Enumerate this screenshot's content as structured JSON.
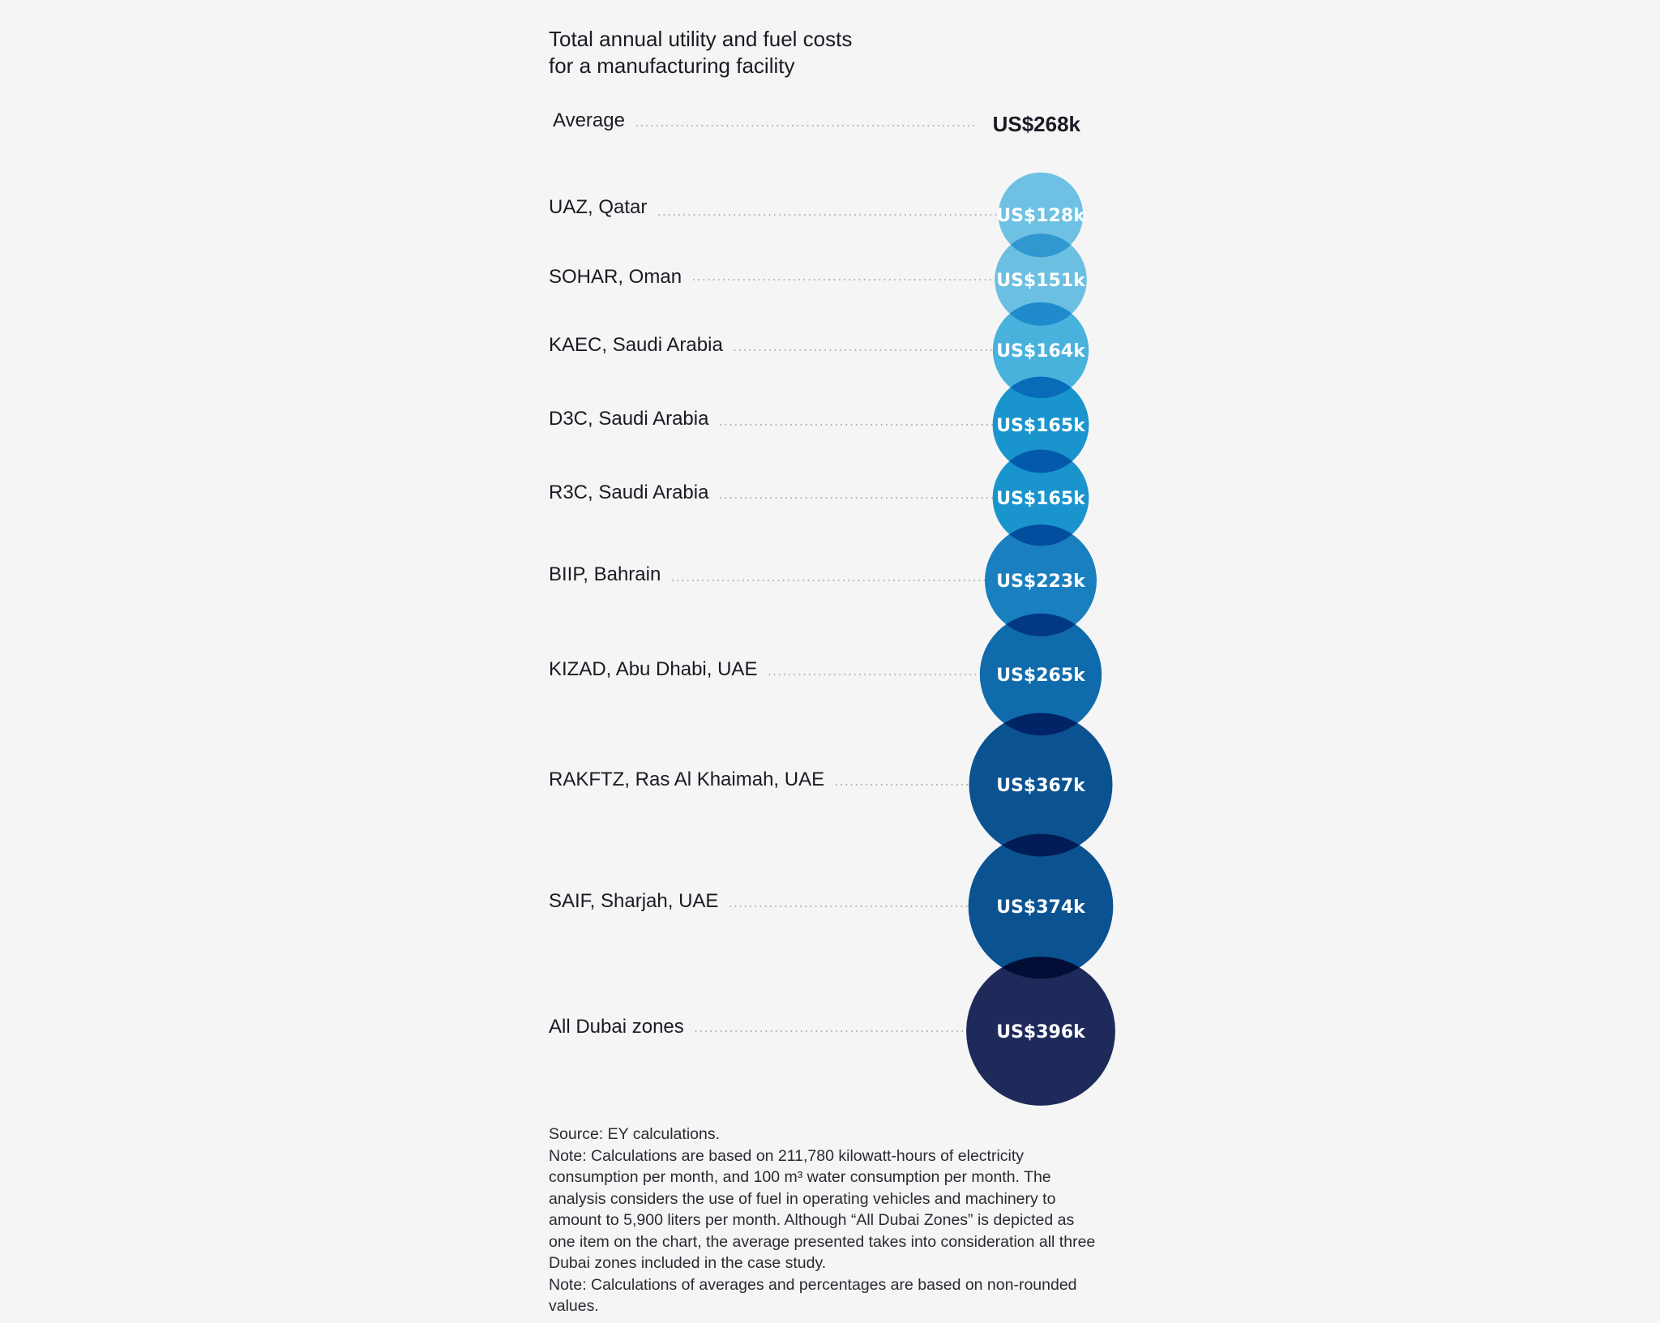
{
  "chart_data": {
    "type": "bubble",
    "title": "Total annual utility and fuel costs\nfor a manufacturing facility",
    "average": {
      "label": "Average",
      "value": 268,
      "display": "US$268k"
    },
    "unit": "US$ thousands",
    "categories": [
      "UAZ, Qatar",
      "SOHAR, Oman",
      "KAEC, Saudi Arabia",
      "D3C, Saudi Arabia",
      "R3C, Saudi Arabia",
      "BIIP, Bahrain",
      "KIZAD, Abu Dhabi, UAE",
      "RAKFTZ, Ras Al Khaimah, UAE",
      "SAIF, Sharjah, UAE",
      "All Dubai zones"
    ],
    "values": [
      128,
      151,
      164,
      165,
      165,
      223,
      265,
      367,
      374,
      396
    ],
    "data_labels": [
      "US$128k",
      "US$151k",
      "US$164k",
      "US$165k",
      "US$165k",
      "US$223k",
      "US$265k",
      "US$367k",
      "US$374k",
      "US$396k"
    ],
    "colors": [
      "#72c9ec",
      "#6fc8ec",
      "#4bb9e6",
      "#1b9ad6",
      "#1a9ad6",
      "#1a84c6",
      "#0f6fb3",
      "#0b5597",
      "#0b5597",
      "#1f2b5e"
    ],
    "grid": false,
    "legend": "none"
  },
  "footer": {
    "source": "Source: EY calculations.",
    "note1": "Note: Calculations are based on 211,780 kilowatt-hours of electricity consumption per month, and 100 m³ water consumption per month. The analysis considers the use of fuel in operating vehicles and machinery to amount to 5,900 liters per month. Although “All Dubai Zones” is depicted as one item on the chart, the average presented takes into consideration all three Dubai zones included in the case study.",
    "note2": "Note: Calculations of averages and percentages are based on non-rounded values."
  }
}
